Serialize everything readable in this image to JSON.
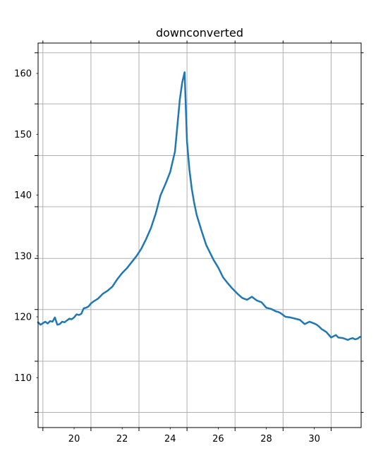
{
  "chart_data": {
    "type": "line",
    "title": "downconverted",
    "xlabel": "",
    "ylabel": "",
    "xlim": [
      18.5,
      31.95
    ],
    "ylim": [
      101.8,
      165.0
    ],
    "grid": true,
    "grid_major_x": [
      18.7,
      20.7,
      22.7,
      24.7,
      26.7,
      28.7,
      30.7
    ],
    "grid_major_y": [
      104.3,
      112.7,
      121.2,
      129.6,
      138.1,
      146.5,
      155.0,
      163.4
    ],
    "grid_minor_x": [],
    "grid_minor_y": [],
    "xticks": [
      20,
      22,
      24,
      26,
      28,
      30
    ],
    "xtick_labels": [
      "20",
      "22",
      "24",
      "26",
      "28",
      "30"
    ],
    "yticks": [
      110,
      120,
      130,
      140,
      150,
      160
    ],
    "ytick_labels": [
      "110",
      "120",
      "130",
      "140",
      "150",
      "160"
    ],
    "line_color": "#1f77b4",
    "grid_color": "#b0b0b0",
    "series": [
      {
        "x": [
          18.5,
          18.6,
          18.8,
          18.9,
          19.0,
          19.1,
          19.2,
          19.3,
          19.4,
          19.5,
          19.6,
          19.8,
          19.9,
          20.0,
          20.1,
          20.2,
          20.3,
          20.4,
          20.5,
          20.6,
          20.7,
          20.8,
          21.0,
          21.2,
          21.4,
          21.6,
          21.8,
          22.0,
          22.2,
          22.4,
          22.6,
          22.8,
          23.0,
          23.2,
          23.4,
          23.6,
          23.8,
          24.0,
          24.2,
          24.4,
          24.5,
          24.6,
          24.7,
          24.8,
          24.9,
          25.0,
          25.1,
          25.2,
          25.3,
          25.4,
          25.5,
          25.6,
          25.8,
          26.0,
          26.2,
          26.4,
          26.6,
          26.8,
          27.0,
          27.2,
          27.4,
          27.6,
          27.8,
          28.0,
          28.2,
          28.4,
          28.5,
          28.6,
          28.8,
          29.0,
          29.2,
          29.4,
          29.6,
          29.8,
          30.0,
          30.1,
          30.2,
          30.3,
          30.5,
          30.7,
          30.8,
          30.9,
          31.0,
          31.2,
          31.4,
          31.5,
          31.6,
          31.7,
          31.8,
          31.9
        ],
        "y": [
          119.1,
          118.7,
          119.2,
          118.9,
          119.3,
          119.2,
          119.9,
          118.7,
          118.8,
          119.2,
          119.1,
          119.7,
          119.6,
          119.9,
          120.4,
          120.3,
          120.5,
          121.4,
          121.5,
          121.7,
          122.2,
          122.5,
          123.0,
          123.8,
          124.3,
          125.0,
          126.2,
          127.2,
          128.0,
          129.0,
          130.0,
          131.2,
          132.8,
          134.6,
          137.0,
          140.0,
          141.8,
          143.8,
          147.2,
          155.7,
          158.5,
          160.2,
          148.8,
          144.2,
          141.0,
          138.7,
          136.8,
          135.5,
          134.2,
          133.0,
          131.8,
          131.0,
          129.4,
          128.1,
          126.5,
          125.5,
          124.6,
          123.8,
          123.1,
          122.8,
          123.3,
          122.7,
          122.4,
          121.5,
          121.3,
          120.9,
          120.8,
          120.6,
          120.0,
          119.9,
          119.7,
          119.5,
          118.8,
          119.2,
          118.9,
          118.7,
          118.4,
          118.0,
          117.5,
          116.6,
          116.8,
          117.0,
          116.6,
          116.5,
          116.2,
          116.4,
          116.5,
          116.3,
          116.4,
          116.7
        ]
      }
    ]
  }
}
